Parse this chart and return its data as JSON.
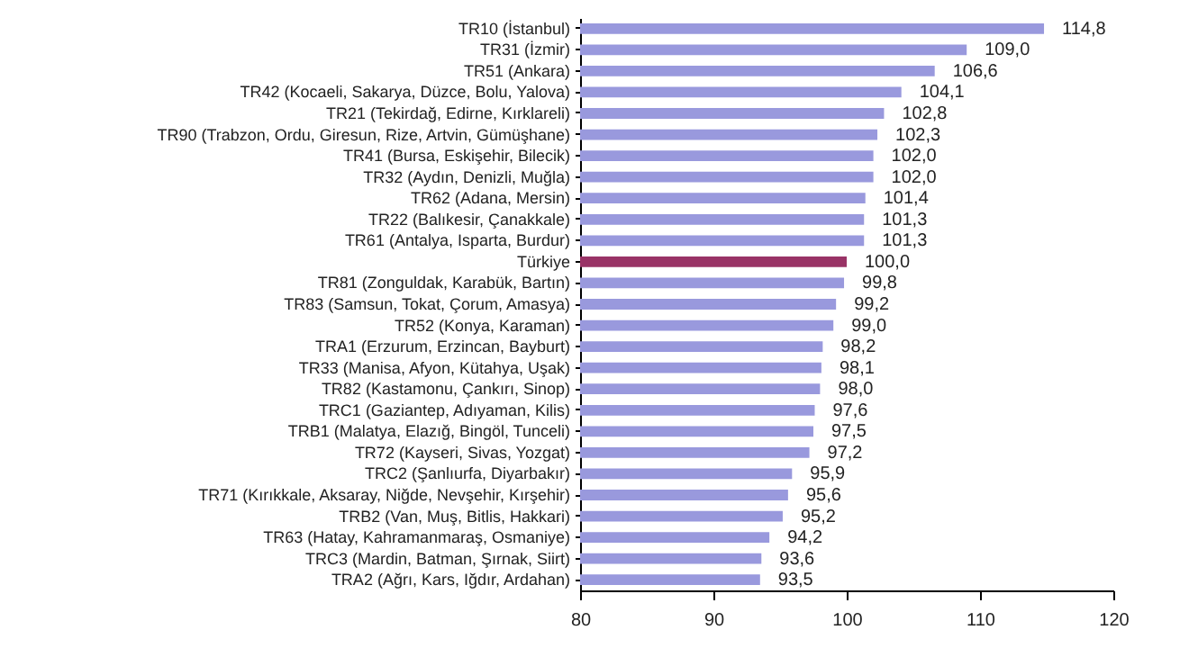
{
  "chart_data": {
    "type": "bar",
    "orientation": "horizontal",
    "categories": [
      "TR10 (İstanbul)",
      "TR31 (İzmir)",
      "TR51 (Ankara)",
      "TR42 (Kocaeli, Sakarya, Düzce, Bolu, Yalova)",
      "TR21 (Tekirdağ, Edirne, Kırklareli)",
      "TR90 (Trabzon, Ordu, Giresun, Rize, Artvin, Gümüşhane)",
      "TR41 (Bursa, Eskişehir, Bilecik)",
      "TR32 (Aydın, Denizli, Muğla)",
      "TR62 (Adana, Mersin)",
      "TR22 (Balıkesir, Çanakkale)",
      "TR61 (Antalya, Isparta, Burdur)",
      "Türkiye",
      "TR81 (Zonguldak, Karabük, Bartın)",
      "TR83 (Samsun, Tokat, Çorum, Amasya)",
      "TR52 (Konya, Karaman)",
      "TRA1 (Erzurum, Erzincan, Bayburt)",
      "TR33 (Manisa, Afyon, Kütahya, Uşak)",
      "TR82 (Kastamonu, Çankırı, Sinop)",
      "TRC1 (Gaziantep, Adıyaman, Kilis)",
      "TRB1 (Malatya, Elazığ, Bingöl, Tunceli)",
      "TR72 (Kayseri, Sivas, Yozgat)",
      "TRC2 (Şanlıurfa, Diyarbakır)",
      "TR71 (Kırıkkale, Aksaray, Niğde, Nevşehir, Kırşehir)",
      "TRB2 (Van, Muş, Bitlis, Hakkari)",
      "TR63 (Hatay, Kahramanmaraş, Osmaniye)",
      "TRC3 (Mardin, Batman, Şırnak, Siirt)",
      "TRA2 (Ağrı, Kars, Iğdır, Ardahan)"
    ],
    "values": [
      114.8,
      109.0,
      106.6,
      104.1,
      102.8,
      102.3,
      102.0,
      102.0,
      101.4,
      101.3,
      101.3,
      100.0,
      99.8,
      99.2,
      99.0,
      98.2,
      98.1,
      98.0,
      97.6,
      97.5,
      97.2,
      95.9,
      95.6,
      95.2,
      94.2,
      93.6,
      93.5
    ],
    "value_labels": [
      "114,8",
      "109,0",
      "106,6",
      "104,1",
      "102,8",
      "102,3",
      "102,0",
      "102,0",
      "101,4",
      "101,3",
      "101,3",
      "100,0",
      "99,8",
      "99,2",
      "99,0",
      "98,2",
      "98,1",
      "98,0",
      "97,6",
      "97,5",
      "97,2",
      "95,9",
      "95,6",
      "95,2",
      "94,2",
      "93,6",
      "93,5"
    ],
    "colors": [
      "#9999dd",
      "#9999dd",
      "#9999dd",
      "#9999dd",
      "#9999dd",
      "#9999dd",
      "#9999dd",
      "#9999dd",
      "#9999dd",
      "#9999dd",
      "#9999dd",
      "#993366",
      "#9999dd",
      "#9999dd",
      "#9999dd",
      "#9999dd",
      "#9999dd",
      "#9999dd",
      "#9999dd",
      "#9999dd",
      "#9999dd",
      "#9999dd",
      "#9999dd",
      "#9999dd",
      "#9999dd",
      "#9999dd",
      "#9999dd"
    ],
    "xlim": [
      80,
      120
    ],
    "xticks": [
      80,
      90,
      100,
      110,
      120
    ],
    "grid": false
  }
}
